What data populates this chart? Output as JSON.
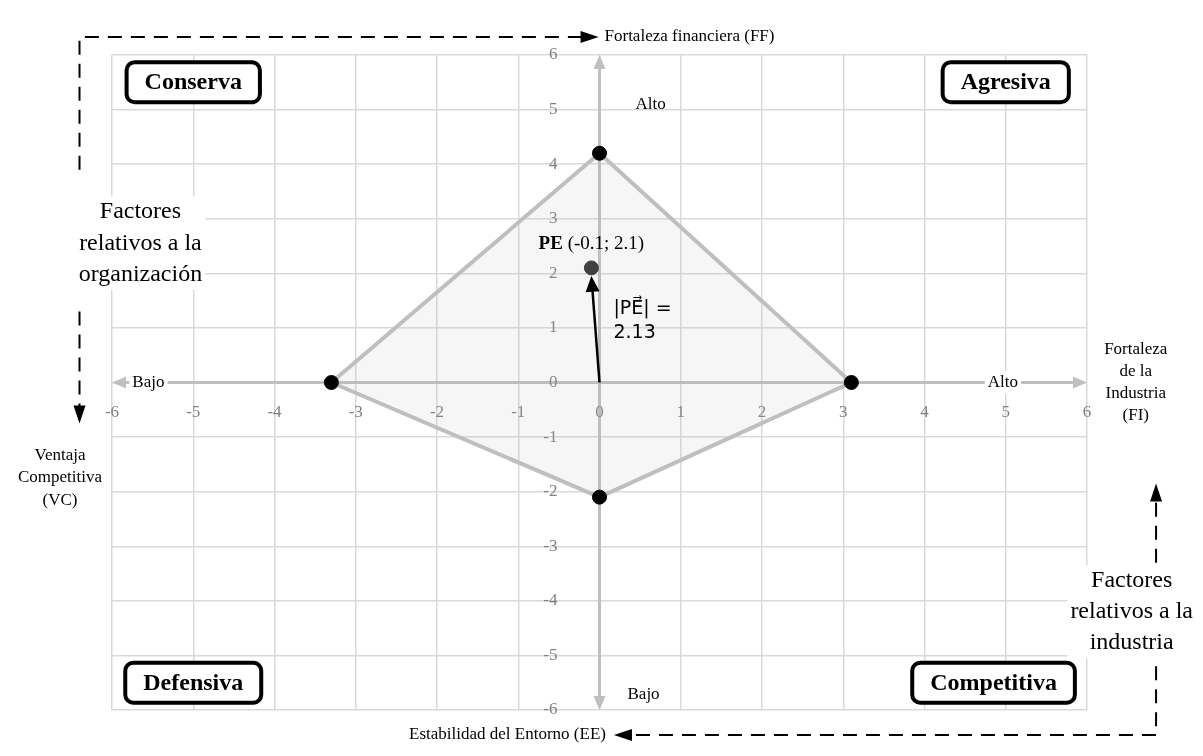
{
  "chart_data": {
    "type": "scatter",
    "xlabel": "Fortaleza de la Industria (FI)",
    "ylabel": "Fortaleza financiera (FF)",
    "xlim": [
      -6,
      6
    ],
    "ylim": [
      -6,
      6
    ],
    "xticks": [
      -6,
      -5,
      -4,
      -3,
      -2,
      -1,
      0,
      1,
      2,
      3,
      4,
      5,
      6
    ],
    "yticks": [
      -6,
      -5,
      -4,
      -3,
      -2,
      -1,
      0,
      1,
      2,
      3,
      4,
      5,
      6
    ],
    "grid": true,
    "legend": false,
    "series": [
      {
        "type": "area",
        "x": [
          0,
          3.1,
          0,
          -3.3,
          0
        ],
        "values": [
          4.2,
          0,
          -2.1,
          0,
          4.2
        ],
        "color": "#bfbfbf",
        "marker": "none"
      },
      {
        "type": "scatter",
        "x": [
          0,
          3.1,
          0,
          -3.3
        ],
        "values": [
          4.2,
          0,
          -2.1,
          0
        ],
        "color": "#000000",
        "marker": "circle"
      },
      {
        "type": "scatter",
        "x": [
          -0.1
        ],
        "values": [
          2.1
        ],
        "color": "#404040",
        "marker": "circle"
      }
    ],
    "annotations": [
      {
        "text": "PE (-0.1; 2.1)",
        "x": -0.1,
        "y": 2.1
      },
      {
        "text": "|PE⃗| = 2.13",
        "x": -0.1,
        "y": 2.1
      },
      "Estabilidad del Entorno (EE)",
      "Ventaja Competitiva (VC)",
      "Conserva",
      "Agresiva",
      "Defensiva",
      "Competitiva",
      "Alto",
      "Bajo",
      "Bajo",
      "Alto",
      "Factores relativos a la organización",
      "Factores relativos a la industria"
    ]
  }
}
